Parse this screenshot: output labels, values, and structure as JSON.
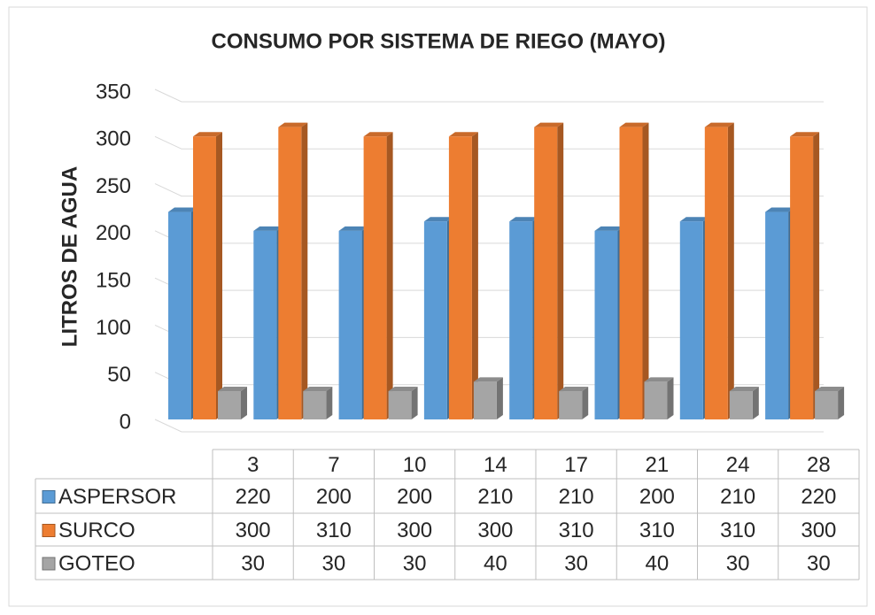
{
  "chart_data": {
    "type": "bar",
    "title": "CONSUMO POR SISTEMA DE RIEGO (MAYO)",
    "ylabel": "LITROS DE AGUA",
    "categories": [
      "3",
      "7",
      "10",
      "14",
      "17",
      "21",
      "24",
      "28"
    ],
    "series": [
      {
        "name": "ASPERSOR",
        "color": "#5b9bd5",
        "values": [
          220,
          200,
          200,
          210,
          210,
          200,
          210,
          220
        ]
      },
      {
        "name": "SURCO",
        "color": "#ed7d31",
        "values": [
          300,
          310,
          300,
          300,
          310,
          310,
          310,
          300
        ]
      },
      {
        "name": "GOTEO",
        "color": "#a5a5a5",
        "values": [
          30,
          30,
          30,
          40,
          30,
          40,
          30,
          30
        ]
      }
    ],
    "ylim": [
      0,
      350
    ],
    "yticks": [
      0,
      50,
      100,
      150,
      200,
      250,
      300,
      350
    ],
    "grid": true,
    "data_table": true
  }
}
